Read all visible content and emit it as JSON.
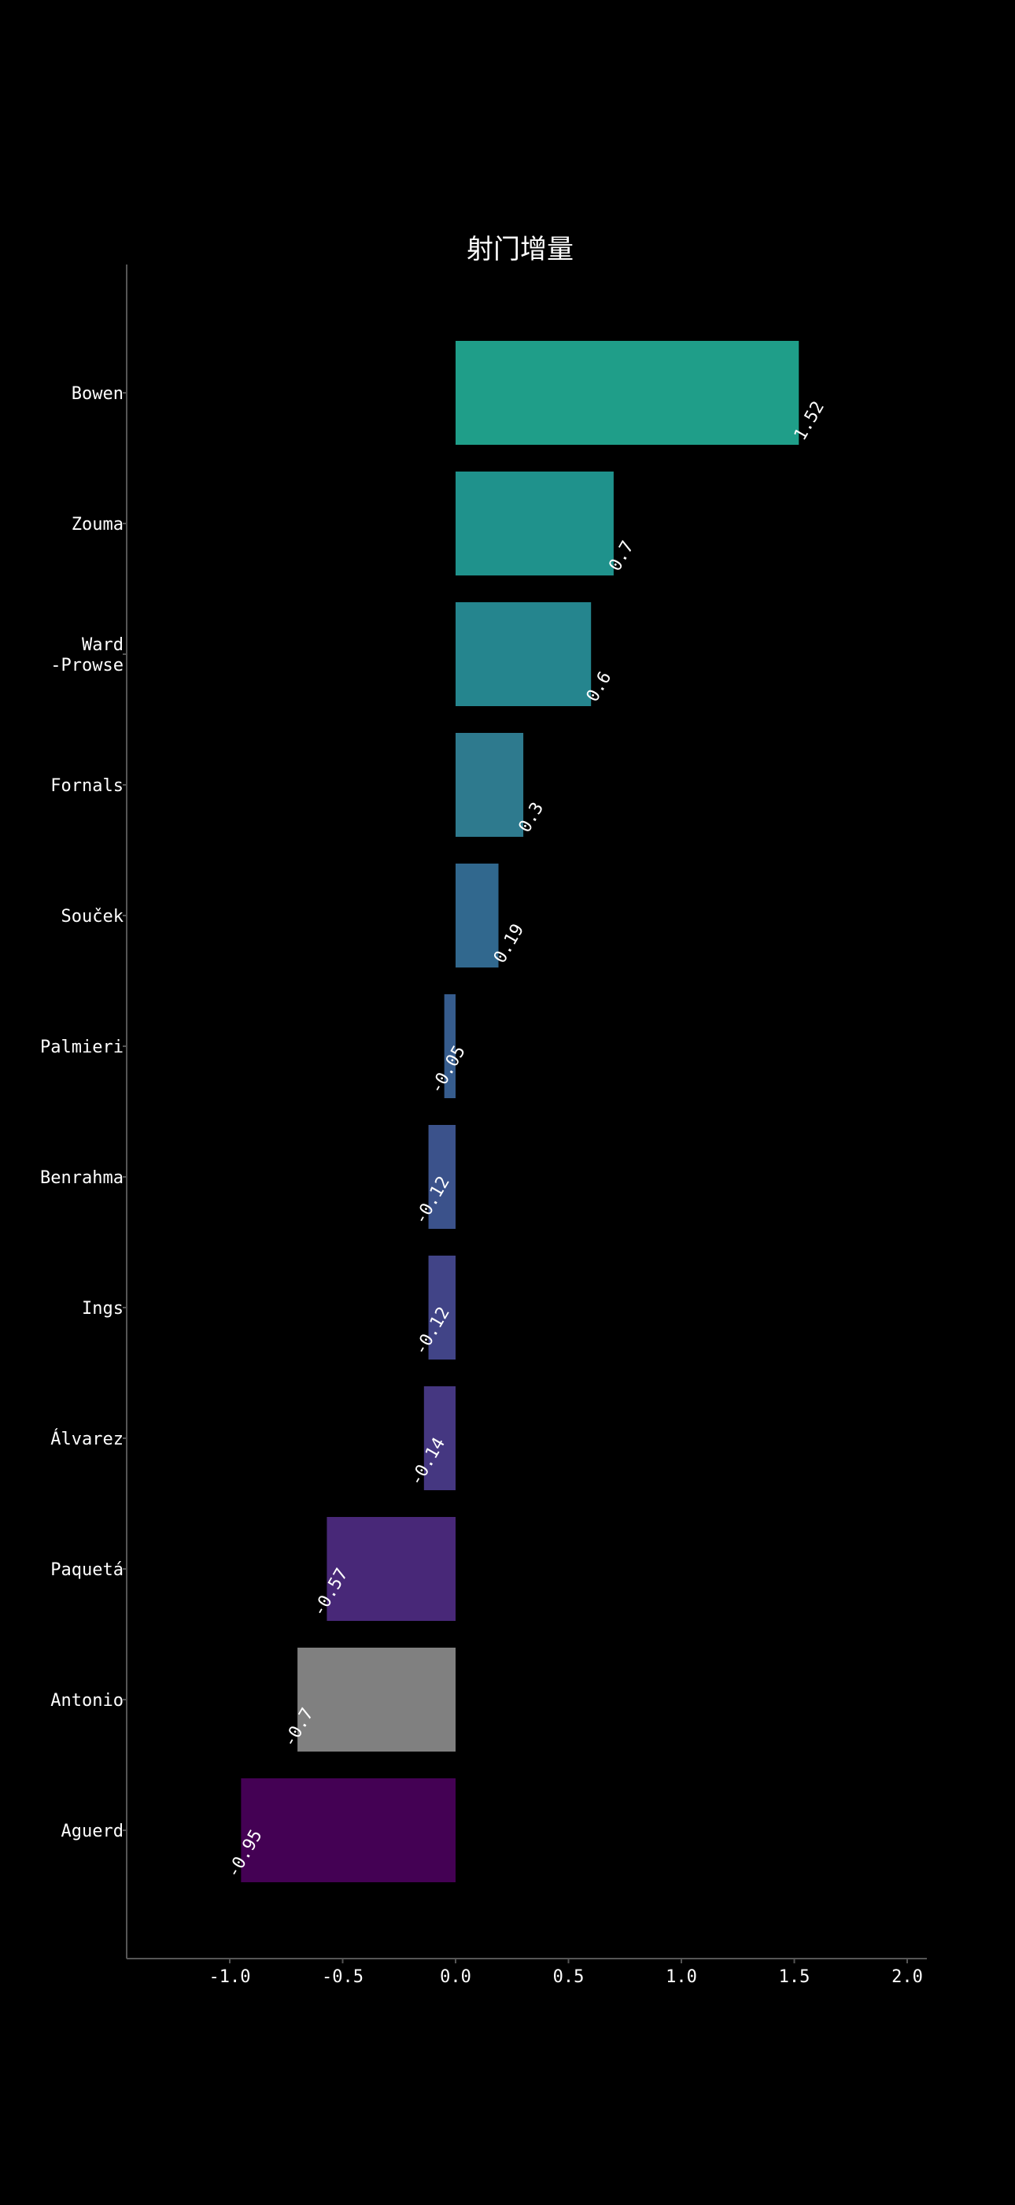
{
  "chart_data": {
    "type": "bar",
    "orientation": "horizontal",
    "title": "射门增量",
    "xlabel": "",
    "ylabel": "",
    "xlim": [
      -1.45,
      2.0
    ],
    "x_ticks": [
      -1.0,
      -0.5,
      0.0,
      0.5,
      1.0,
      1.5,
      2.0
    ],
    "x_tick_labels": [
      "-1.0",
      "-0.5",
      "0.0",
      "0.5",
      "1.0",
      "1.5",
      "2.0"
    ],
    "grid": false,
    "legend": "none",
    "background": "#000000",
    "axis_color": "#555555",
    "text_color": "#ffffff",
    "categories": [
      {
        "label_lines": [
          "Bowen"
        ],
        "value": 1.52,
        "value_label": "1.52",
        "color": "#1f9e89"
      },
      {
        "label_lines": [
          "Zouma"
        ],
        "value": 0.7,
        "value_label": "0.7",
        "color": "#1f928c"
      },
      {
        "label_lines": [
          "Ward",
          "-Prowse"
        ],
        "value": 0.6,
        "value_label": "0.6",
        "color": "#25858e"
      },
      {
        "label_lines": [
          "Fornals"
        ],
        "value": 0.3,
        "value_label": "0.3",
        "color": "#2e7a8e"
      },
      {
        "label_lines": [
          "Souček"
        ],
        "value": 0.19,
        "value_label": "0.19",
        "color": "#31688e"
      },
      {
        "label_lines": [
          "Palmieri"
        ],
        "value": -0.05,
        "value_label": "-0.05",
        "color": "#365c8d"
      },
      {
        "label_lines": [
          "Benrahma"
        ],
        "value": -0.12,
        "value_label": "-0.12",
        "color": "#3b528b"
      },
      {
        "label_lines": [
          "Ings"
        ],
        "value": -0.12,
        "value_label": "-0.12",
        "color": "#414487"
      },
      {
        "label_lines": [
          "Álvarez"
        ],
        "value": -0.14,
        "value_label": "-0.14",
        "color": "#453781"
      },
      {
        "label_lines": [
          "Paquetá"
        ],
        "value": -0.57,
        "value_label": "-0.57",
        "color": "#482878"
      },
      {
        "label_lines": [
          "Antonio"
        ],
        "value": -0.7,
        "value_label": "-0.7",
        "color": "#808080"
      },
      {
        "label_lines": [
          "Aguerd"
        ],
        "value": -0.95,
        "value_label": "-0.95",
        "color": "#440154"
      }
    ]
  }
}
